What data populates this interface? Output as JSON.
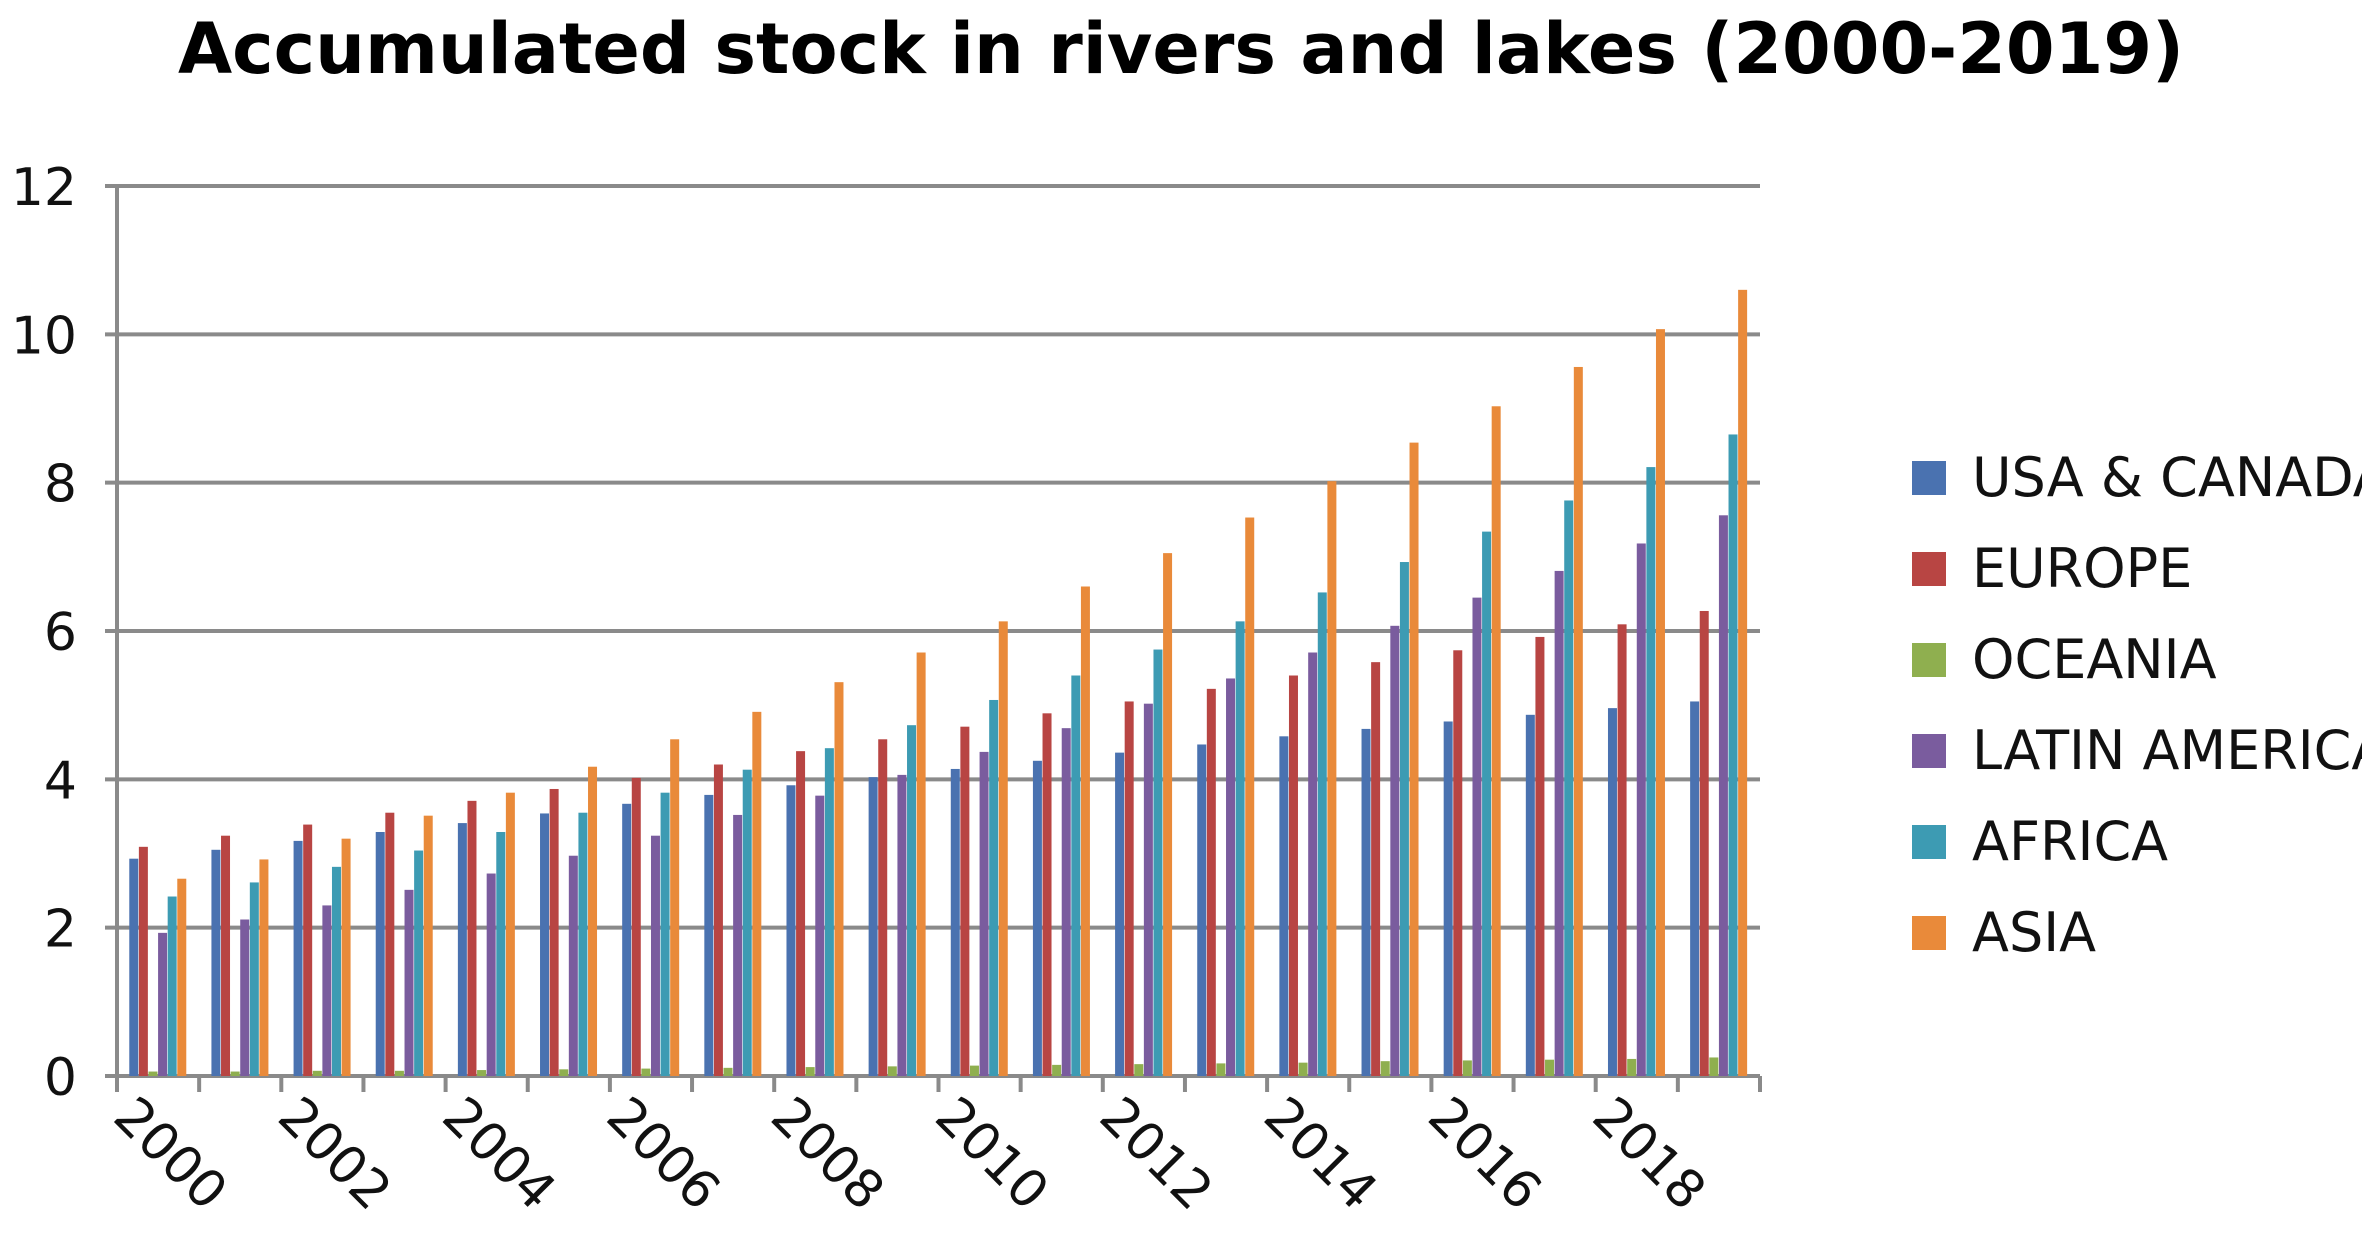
{
  "chart_data": {
    "type": "bar",
    "title": "Accumulated stock in rivers and lakes (2000-2019)",
    "xlabel": "",
    "ylabel": "",
    "ylim": [
      0,
      12
    ],
    "yticks": [
      0,
      2,
      4,
      6,
      8,
      10,
      12
    ],
    "xtick_labels": [
      "2000",
      "2002",
      "2004",
      "2006",
      "2008",
      "2010",
      "2012",
      "2014",
      "2016",
      "2018"
    ],
    "categories": [
      "2000",
      "2001",
      "2002",
      "2003",
      "2004",
      "2005",
      "2006",
      "2007",
      "2008",
      "2009",
      "2010",
      "2011",
      "2012",
      "2013",
      "2014",
      "2015",
      "2016",
      "2017",
      "2018",
      "2019"
    ],
    "grid": true,
    "legend_position": "right",
    "series": [
      {
        "name": "USA & CANADA",
        "color": "#4a72b0",
        "values": [
          2.93,
          3.05,
          3.17,
          3.29,
          3.41,
          3.54,
          3.67,
          3.79,
          3.92,
          4.03,
          4.14,
          4.25,
          4.36,
          4.47,
          4.58,
          4.68,
          4.78,
          4.87,
          4.96,
          5.05
        ]
      },
      {
        "name": "EUROPE",
        "color": "#b84543",
        "values": [
          3.09,
          3.24,
          3.39,
          3.55,
          3.71,
          3.87,
          4.02,
          4.2,
          4.38,
          4.54,
          4.71,
          4.89,
          5.05,
          5.22,
          5.4,
          5.58,
          5.74,
          5.92,
          6.09,
          6.27
        ]
      },
      {
        "name": "OCEANIA",
        "color": "#8faf4f",
        "values": [
          0.06,
          0.06,
          0.07,
          0.07,
          0.08,
          0.09,
          0.1,
          0.11,
          0.12,
          0.13,
          0.14,
          0.15,
          0.16,
          0.17,
          0.18,
          0.2,
          0.21,
          0.22,
          0.23,
          0.25
        ]
      },
      {
        "name": "LATIN AMERICA",
        "color": "#7a5c9e",
        "values": [
          1.93,
          2.11,
          2.3,
          2.51,
          2.73,
          2.97,
          3.24,
          3.52,
          3.78,
          4.06,
          4.37,
          4.69,
          5.02,
          5.36,
          5.71,
          6.07,
          6.45,
          6.81,
          7.18,
          7.56
        ]
      },
      {
        "name": "AFRICA",
        "color": "#3d9bb3",
        "values": [
          2.42,
          2.61,
          2.82,
          3.04,
          3.29,
          3.55,
          3.82,
          4.13,
          4.42,
          4.73,
          5.07,
          5.4,
          5.75,
          6.13,
          6.52,
          6.93,
          7.34,
          7.76,
          8.21,
          8.65
        ]
      },
      {
        "name": "ASIA",
        "color": "#e98a3a",
        "values": [
          2.66,
          2.92,
          3.2,
          3.51,
          3.82,
          4.17,
          4.54,
          4.91,
          5.31,
          5.71,
          6.13,
          6.6,
          7.05,
          7.53,
          8.02,
          8.54,
          9.03,
          9.56,
          10.07,
          10.6
        ]
      }
    ]
  }
}
